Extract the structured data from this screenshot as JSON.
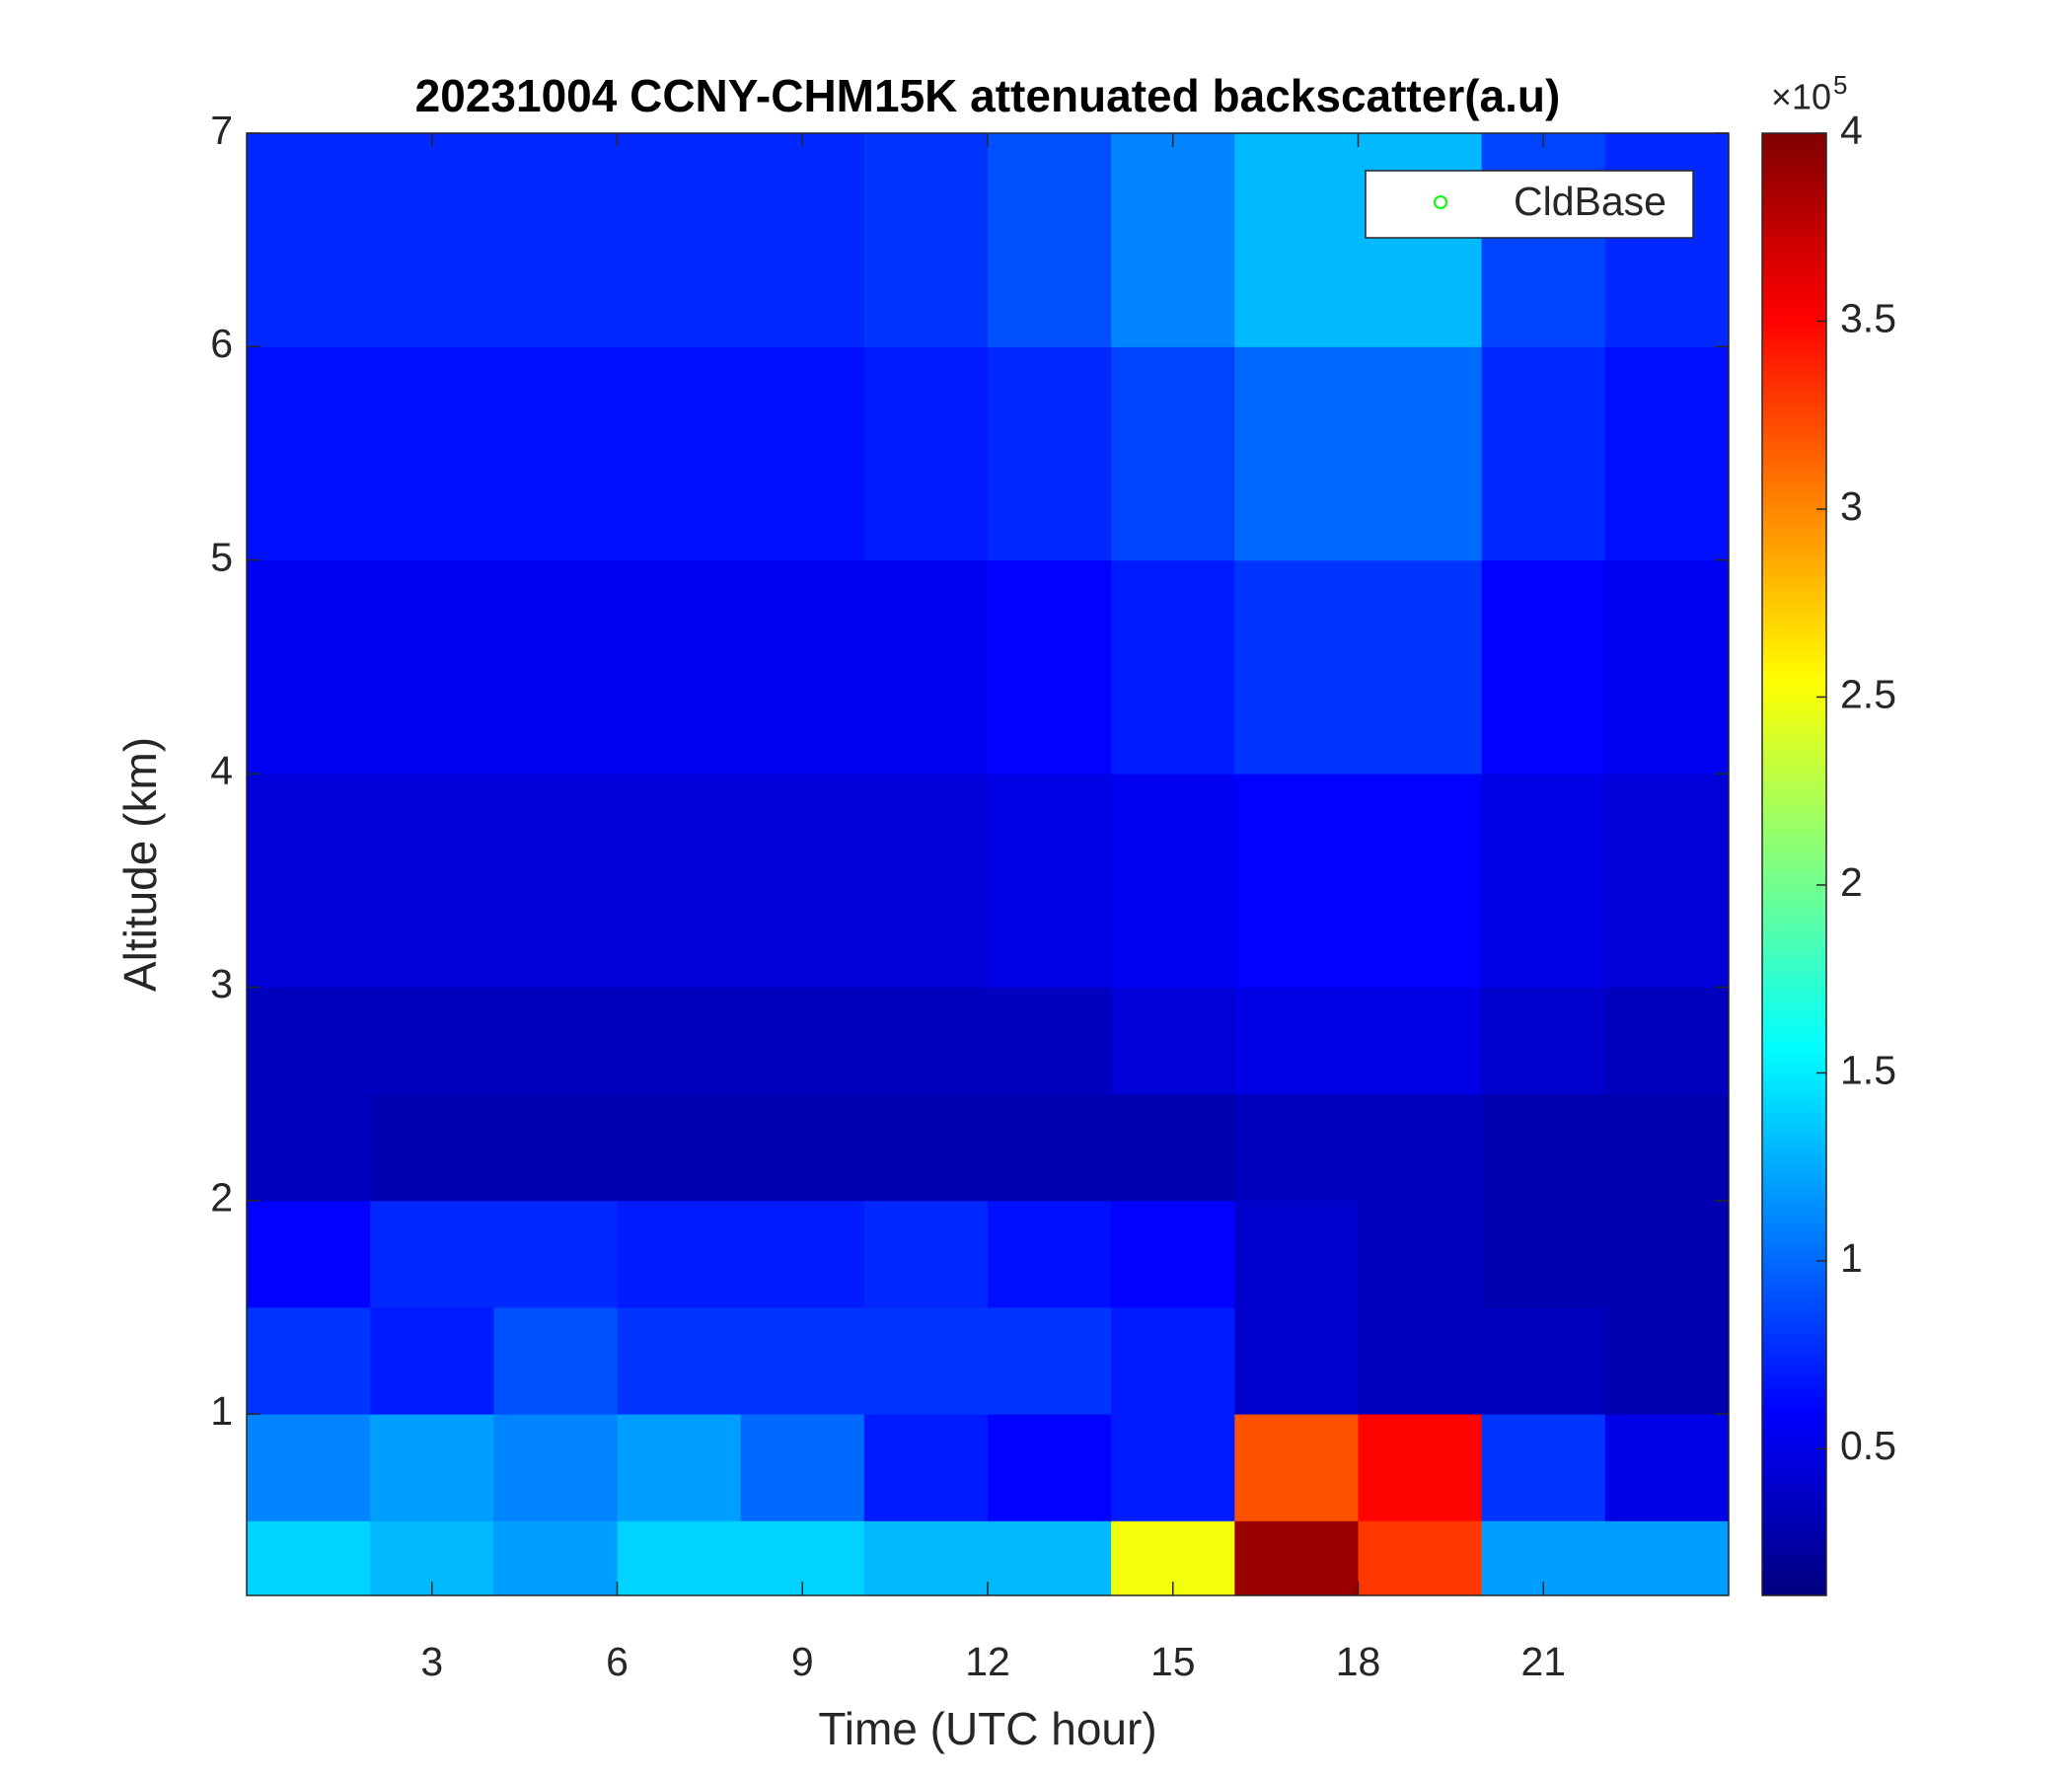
{
  "chart_data": {
    "type": "heatmap",
    "title": "20231004 CCNY-CHM15K attenuated backscatter(a.u)",
    "x_label": "Time (UTC hour)",
    "y_label": "Altitude (km)",
    "x_edges": [
      0,
      2,
      4,
      6,
      8,
      10,
      12,
      14,
      16,
      18,
      20,
      22,
      24
    ],
    "y_edges": [
      0.15,
      0.5,
      1,
      1.5,
      2,
      2.5,
      3,
      4,
      5,
      6,
      7
    ],
    "z": [
      [
        1.4,
        1.3,
        1.2,
        1.4,
        1.4,
        1.3,
        1.3,
        2.5,
        3.9,
        3.3,
        1.2,
        1.2
      ],
      [
        1.1,
        1.2,
        1.1,
        1.2,
        1.0,
        0.7,
        0.6,
        0.7,
        3.2,
        3.5,
        0.8,
        0.5
      ],
      [
        0.8,
        0.7,
        0.9,
        0.8,
        0.8,
        0.8,
        0.8,
        0.7,
        0.4,
        0.35,
        0.35,
        0.3
      ],
      [
        0.6,
        0.75,
        0.75,
        0.7,
        0.7,
        0.75,
        0.65,
        0.6,
        0.4,
        0.35,
        0.3,
        0.3
      ],
      [
        0.35,
        0.3,
        0.3,
        0.3,
        0.3,
        0.3,
        0.3,
        0.3,
        0.35,
        0.35,
        0.3,
        0.3
      ],
      [
        0.35,
        0.35,
        0.35,
        0.35,
        0.35,
        0.35,
        0.35,
        0.45,
        0.5,
        0.5,
        0.4,
        0.35
      ],
      [
        0.45,
        0.45,
        0.45,
        0.45,
        0.45,
        0.45,
        0.5,
        0.55,
        0.6,
        0.6,
        0.5,
        0.45
      ],
      [
        0.55,
        0.55,
        0.55,
        0.55,
        0.55,
        0.55,
        0.6,
        0.7,
        0.8,
        0.8,
        0.6,
        0.55
      ],
      [
        0.65,
        0.65,
        0.65,
        0.65,
        0.65,
        0.7,
        0.75,
        0.85,
        1.0,
        1.0,
        0.75,
        0.65
      ],
      [
        0.75,
        0.75,
        0.75,
        0.75,
        0.75,
        0.8,
        0.9,
        1.1,
        1.3,
        1.3,
        0.85,
        0.75
      ]
    ],
    "colormap": "jet",
    "xlim": [
      0,
      24
    ],
    "xticks": [
      3,
      6,
      9,
      12,
      15,
      18,
      21
    ],
    "ylim": [
      0.15,
      7
    ],
    "yticks": [
      1,
      2,
      3,
      4,
      5,
      6,
      7
    ],
    "clim": [
      0.11,
      4
    ],
    "cticks": [
      0.5,
      1,
      1.5,
      2,
      2.5,
      3,
      3.5,
      4
    ],
    "colorbar_multiplier": {
      "base": "×10",
      "exponent": "5"
    },
    "legend": {
      "location": "northeast",
      "entries": [
        {
          "name": "CldBase",
          "color": "#00ff00",
          "marker": "o"
        }
      ]
    }
  }
}
